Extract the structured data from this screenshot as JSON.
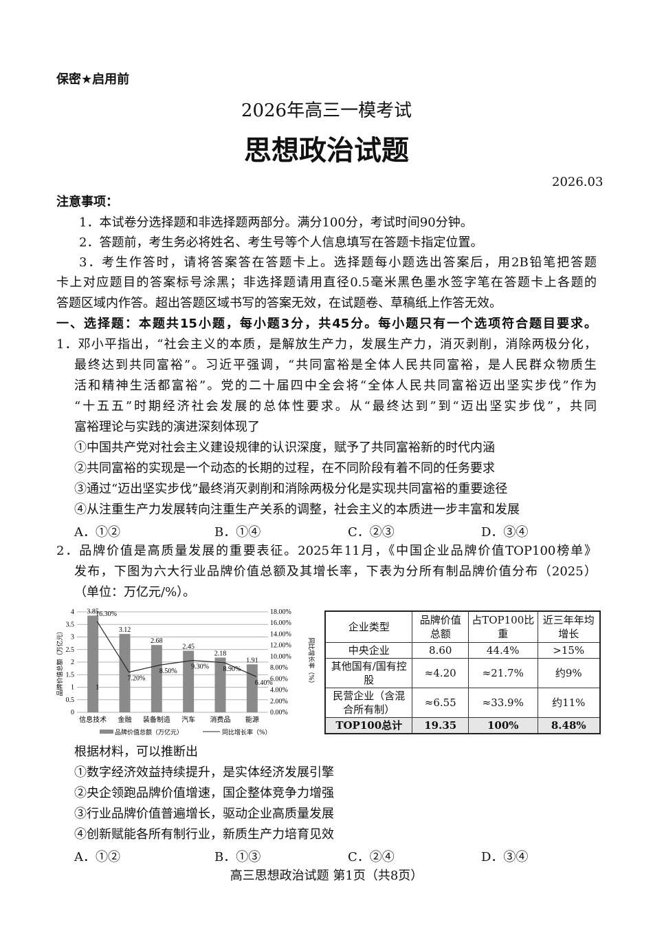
{
  "header": {
    "confidential": "保密★启用前",
    "exam": "2026年高三一模考试",
    "subject": "思想政治试题",
    "date": "2026.03"
  },
  "notes": {
    "title": "注意事项：",
    "lines": [
      "1．本试卷分选择题和非选择题两部分。满分100分，考试时间90分钟。",
      "2．答题前，考生务必将姓名、考生号等个人信息填写在答题卡指定位置。",
      "3．考生作答时，请将答案答在答题卡上。选择题每小题选出答案后，用2B铅笔把答题",
      "卡上对应题目的答案标号涂黑；非选择题请用直径0.5毫米黑色墨水签字笔在答题卡上各题的",
      "答题区域内作答。超出答题区域书写的答案无效，在试题卷、草稿纸上作答无效。"
    ]
  },
  "section1": "一、选择题：本题共15小题，每小题3分，共45分。每小题只有一个选项符合题目要求。",
  "q1": {
    "lines": [
      "1．邓小平指出，“社会主义的本质，是解放生产力，发展生产力，消灭剥削，消除两极分化，",
      "最终达到共同富裕”。习近平强调，“共同富裕是全体人民共同富裕，是人民群众物质生",
      "活和精神生活都富裕”。党的二十届四中全会将“全体人民共同富裕迈出坚实步伐”作为",
      "“十五五”时期经济社会发展的总体性要求。从“最终达到”到“迈出坚实步伐”，共同",
      "富裕理论与实践的演进深刻体现了"
    ],
    "items": [
      "①中国共产党对社会主义建设规律的认识深度，赋予了共同富裕新的时代内涵",
      "②共同富裕的实现是一个动态的长期的过程，在不同阶段有着不同的任务要求",
      "③通过“迈出坚实步伐”最终消灭剥削和消除两极分化是实现共同富裕的重要途径",
      "④从注重生产力发展转向注重生产关系的调整，社会主义的本质进一步丰富和发展"
    ],
    "options": [
      "A．①②",
      "B．①④",
      "C．②③",
      "D．③④"
    ]
  },
  "q2": {
    "lines": [
      "2．品牌价值是高质量发展的重要表征。2025年11月，《中国企业品牌价值TOP100榜单》",
      "发布，下图为六大行业品牌价值总额及其增长率，下表为分所有制品牌价值分布（2025）",
      "（单位：万亿元/%）。"
    ],
    "prompt": "根据材料，可以推断出",
    "items": [
      "①数字经济效益持续提升，是实体经济发展引擎",
      "②央企领跑品牌价值增速，国企整体竞争力增强",
      "③行业品牌价值普遍增长，驱动企业高质量发展",
      "④创新赋能各所有制行业，新质生产力培育见效"
    ],
    "options": [
      "A．①②",
      "B．①③",
      "C．②④",
      "D．③④"
    ],
    "table": {
      "headers": [
        "企业类型",
        "品牌价值总额",
        "占TOP100比重",
        "近三年年均增长"
      ],
      "rows": [
        [
          "中央企业",
          "8.60",
          "44.4%",
          ">15%"
        ],
        [
          "其他国有/国有控股",
          "≈4.20",
          "≈21.7%",
          "约9%"
        ],
        [
          "民营企业（含混合所有制）",
          "≈6.55",
          "≈33.9%",
          "约11%"
        ],
        [
          "TOP100总计",
          "19.35",
          "100%",
          "8.48%"
        ]
      ]
    }
  },
  "chart_data": {
    "type": "bar+line",
    "categories": [
      "信息技术",
      "金融",
      "装备制造",
      "汽车",
      "消费品",
      "能源"
    ],
    "series": [
      {
        "name": "品牌价值总额（万亿元）",
        "type": "bar",
        "values": [
          3.85,
          3.12,
          2.68,
          2.45,
          2.18,
          1.91
        ],
        "labels": [
          "3.85",
          "3.12",
          "2.68",
          "2.45",
          "2.18",
          "1.91"
        ]
      },
      {
        "name": "同比增长率（%）",
        "type": "line",
        "values": [
          16.3,
          7.2,
          8.5,
          9.3,
          8.9,
          6.4
        ],
        "labels": [
          "16.30%",
          "7.20%",
          "8.50%",
          "9.30%",
          "8.90%",
          "6.40%"
        ]
      }
    ],
    "ylabel": "品牌价值总额（万亿元）",
    "y2label": "同比增长率（%）",
    "ylim": [
      0,
      4
    ],
    "y2lim": [
      0,
      18
    ],
    "yticks": [
      "0",
      "0.5",
      "1",
      "1.5",
      "2",
      "2.5",
      "3",
      "3.5",
      "4"
    ],
    "y2ticks": [
      "0.00%",
      "2.00%",
      "4.00%",
      "6.00%",
      "8.00%",
      "10.00%",
      "12.00%",
      "14.00%",
      "16.00%",
      "18.00%"
    ],
    "annotation": "1",
    "grid": true,
    "legend": "bottom",
    "bar_color": "#8a8a8a"
  },
  "footer": "高三思想政治试题 第1页（共8页）"
}
